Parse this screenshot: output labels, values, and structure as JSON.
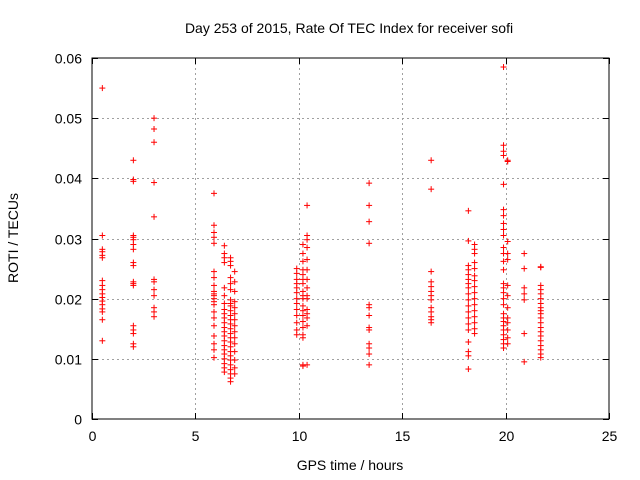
{
  "chart_data": {
    "type": "scatter",
    "title": "Day 253 of 2015, Rate Of TEC Index for receiver sofi",
    "xlabel": "GPS time / hours",
    "ylabel": "ROTI / TECUs",
    "xlim": [
      0,
      25
    ],
    "ylim": [
      0,
      0.06
    ],
    "xticks": [
      "0",
      "5",
      "10",
      "15",
      "20",
      "25"
    ],
    "yticks": [
      "0",
      "0.01",
      "0.02",
      "0.03",
      "0.04",
      "0.05",
      "0.06"
    ],
    "grid": true,
    "marker": "+",
    "color": "#ff0000",
    "series": [
      {
        "name": "sofi",
        "points": [
          [
            0.5,
            0.055
          ],
          [
            0.5,
            0.0305
          ],
          [
            0.5,
            0.0282
          ],
          [
            0.5,
            0.0278
          ],
          [
            0.5,
            0.0272
          ],
          [
            0.5,
            0.0268
          ],
          [
            0.5,
            0.023
          ],
          [
            0.5,
            0.0222
          ],
          [
            0.5,
            0.0215
          ],
          [
            0.5,
            0.0208
          ],
          [
            0.5,
            0.0202
          ],
          [
            0.5,
            0.0196
          ],
          [
            0.5,
            0.019
          ],
          [
            0.5,
            0.0183
          ],
          [
            0.5,
            0.0178
          ],
          [
            0.5,
            0.0165
          ],
          [
            0.5,
            0.013
          ],
          [
            2.0,
            0.043
          ],
          [
            2.0,
            0.0398
          ],
          [
            2.0,
            0.0395
          ],
          [
            2.0,
            0.0305
          ],
          [
            2.0,
            0.0302
          ],
          [
            2.0,
            0.0298
          ],
          [
            2.0,
            0.029
          ],
          [
            2.0,
            0.0282
          ],
          [
            2.0,
            0.026
          ],
          [
            2.0,
            0.0255
          ],
          [
            2.0,
            0.0228
          ],
          [
            2.0,
            0.0225
          ],
          [
            2.0,
            0.0222
          ],
          [
            2.0,
            0.0155
          ],
          [
            2.0,
            0.0148
          ],
          [
            2.0,
            0.0142
          ],
          [
            2.0,
            0.0125
          ],
          [
            2.0,
            0.012
          ],
          [
            3.0,
            0.05
          ],
          [
            3.0,
            0.0482
          ],
          [
            3.0,
            0.046
          ],
          [
            3.0,
            0.0393
          ],
          [
            3.0,
            0.0336
          ],
          [
            3.0,
            0.0232
          ],
          [
            3.0,
            0.0228
          ],
          [
            3.0,
            0.0215
          ],
          [
            3.0,
            0.0205
          ],
          [
            3.0,
            0.0185
          ],
          [
            3.0,
            0.0178
          ],
          [
            3.0,
            0.017
          ],
          [
            5.9,
            0.0375
          ],
          [
            5.9,
            0.0322
          ],
          [
            5.9,
            0.031
          ],
          [
            5.9,
            0.0302
          ],
          [
            5.9,
            0.0292
          ],
          [
            5.9,
            0.0245
          ],
          [
            5.9,
            0.0235
          ],
          [
            5.9,
            0.0222
          ],
          [
            5.9,
            0.0212
          ],
          [
            5.9,
            0.0208
          ],
          [
            5.9,
            0.0205
          ],
          [
            5.9,
            0.02
          ],
          [
            5.9,
            0.0195
          ],
          [
            5.9,
            0.019
          ],
          [
            5.9,
            0.0178
          ],
          [
            5.9,
            0.0168
          ],
          [
            5.9,
            0.0155
          ],
          [
            5.9,
            0.0138
          ],
          [
            5.9,
            0.0125
          ],
          [
            5.9,
            0.0115
          ],
          [
            5.9,
            0.0102
          ],
          [
            6.4,
            0.0288
          ],
          [
            6.4,
            0.0275
          ],
          [
            6.4,
            0.0268
          ],
          [
            6.4,
            0.026
          ],
          [
            6.4,
            0.0218
          ],
          [
            6.4,
            0.0205
          ],
          [
            6.4,
            0.0192
          ],
          [
            6.4,
            0.0182
          ],
          [
            6.4,
            0.0175
          ],
          [
            6.4,
            0.0168
          ],
          [
            6.4,
            0.016
          ],
          [
            6.4,
            0.0152
          ],
          [
            6.4,
            0.0145
          ],
          [
            6.4,
            0.0138
          ],
          [
            6.4,
            0.013
          ],
          [
            6.4,
            0.0122
          ],
          [
            6.4,
            0.0115
          ],
          [
            6.4,
            0.0108
          ],
          [
            6.4,
            0.01
          ],
          [
            6.4,
            0.0092
          ],
          [
            6.4,
            0.0085
          ],
          [
            6.4,
            0.0078
          ],
          [
            6.7,
            0.0268
          ],
          [
            6.7,
            0.0262
          ],
          [
            6.7,
            0.0255
          ],
          [
            6.7,
            0.0235
          ],
          [
            6.7,
            0.0225
          ],
          [
            6.7,
            0.0215
          ],
          [
            6.7,
            0.0198
          ],
          [
            6.7,
            0.0192
          ],
          [
            6.7,
            0.0188
          ],
          [
            6.7,
            0.018
          ],
          [
            6.7,
            0.0172
          ],
          [
            6.7,
            0.0165
          ],
          [
            6.7,
            0.0158
          ],
          [
            6.7,
            0.015
          ],
          [
            6.7,
            0.0142
          ],
          [
            6.7,
            0.0135
          ],
          [
            6.7,
            0.0128
          ],
          [
            6.7,
            0.012
          ],
          [
            6.7,
            0.0112
          ],
          [
            6.7,
            0.0105
          ],
          [
            6.7,
            0.0098
          ],
          [
            6.7,
            0.009
          ],
          [
            6.7,
            0.0082
          ],
          [
            6.7,
            0.0075
          ],
          [
            6.7,
            0.0068
          ],
          [
            6.7,
            0.0062
          ],
          [
            6.9,
            0.0245
          ],
          [
            6.9,
            0.0228
          ],
          [
            6.9,
            0.0212
          ],
          [
            6.9,
            0.0195
          ],
          [
            6.9,
            0.0185
          ],
          [
            6.9,
            0.0175
          ],
          [
            6.9,
            0.0165
          ],
          [
            6.9,
            0.0155
          ],
          [
            6.9,
            0.0145
          ],
          [
            6.9,
            0.0135
          ],
          [
            6.9,
            0.0125
          ],
          [
            6.9,
            0.0112
          ],
          [
            6.9,
            0.0098
          ],
          [
            6.9,
            0.0085
          ],
          [
            6.9,
            0.0075
          ],
          [
            9.9,
            0.025
          ],
          [
            9.9,
            0.0242
          ],
          [
            9.9,
            0.0232
          ],
          [
            9.9,
            0.0225
          ],
          [
            9.9,
            0.0218
          ],
          [
            9.9,
            0.021
          ],
          [
            9.9,
            0.02
          ],
          [
            9.9,
            0.0192
          ],
          [
            9.9,
            0.0182
          ],
          [
            9.9,
            0.0172
          ],
          [
            9.9,
            0.016
          ],
          [
            9.9,
            0.0148
          ],
          [
            9.9,
            0.014
          ],
          [
            10.2,
            0.029
          ],
          [
            10.2,
            0.0275
          ],
          [
            10.2,
            0.0262
          ],
          [
            10.2,
            0.0248
          ],
          [
            10.2,
            0.024
          ],
          [
            10.2,
            0.0232
          ],
          [
            10.2,
            0.0225
          ],
          [
            10.2,
            0.0212
          ],
          [
            10.2,
            0.0205
          ],
          [
            10.2,
            0.02
          ],
          [
            10.2,
            0.0188
          ],
          [
            10.2,
            0.018
          ],
          [
            10.2,
            0.0172
          ],
          [
            10.2,
            0.0162
          ],
          [
            10.2,
            0.0152
          ],
          [
            10.2,
            0.014
          ],
          [
            10.2,
            0.0135
          ],
          [
            10.2,
            0.009
          ],
          [
            10.2,
            0.0088
          ],
          [
            10.4,
            0.0355
          ],
          [
            10.4,
            0.0305
          ],
          [
            10.4,
            0.0298
          ],
          [
            10.4,
            0.0285
          ],
          [
            10.4,
            0.0265
          ],
          [
            10.4,
            0.0248
          ],
          [
            10.4,
            0.0232
          ],
          [
            10.4,
            0.0218
          ],
          [
            10.4,
            0.0205
          ],
          [
            10.4,
            0.02
          ],
          [
            10.4,
            0.0182
          ],
          [
            10.4,
            0.0175
          ],
          [
            10.4,
            0.0168
          ],
          [
            10.4,
            0.0155
          ],
          [
            10.4,
            0.009
          ],
          [
            13.4,
            0.0392
          ],
          [
            13.4,
            0.0355
          ],
          [
            13.4,
            0.0328
          ],
          [
            13.4,
            0.0292
          ],
          [
            13.4,
            0.019
          ],
          [
            13.4,
            0.0185
          ],
          [
            13.4,
            0.0172
          ],
          [
            13.4,
            0.0152
          ],
          [
            13.4,
            0.0148
          ],
          [
            13.4,
            0.0125
          ],
          [
            13.4,
            0.0118
          ],
          [
            13.4,
            0.0108
          ],
          [
            13.4,
            0.009
          ],
          [
            16.4,
            0.043
          ],
          [
            16.4,
            0.0382
          ],
          [
            16.4,
            0.0245
          ],
          [
            16.4,
            0.0228
          ],
          [
            16.4,
            0.022
          ],
          [
            16.4,
            0.0212
          ],
          [
            16.4,
            0.0205
          ],
          [
            16.4,
            0.0198
          ],
          [
            16.4,
            0.0185
          ],
          [
            16.4,
            0.0178
          ],
          [
            16.4,
            0.017
          ],
          [
            16.4,
            0.0165
          ],
          [
            16.4,
            0.016
          ],
          [
            18.2,
            0.0346
          ],
          [
            18.2,
            0.0296
          ],
          [
            18.2,
            0.0255
          ],
          [
            18.2,
            0.0248
          ],
          [
            18.2,
            0.024
          ],
          [
            18.2,
            0.0232
          ],
          [
            18.2,
            0.0225
          ],
          [
            18.2,
            0.0218
          ],
          [
            18.2,
            0.0208
          ],
          [
            18.2,
            0.0198
          ],
          [
            18.2,
            0.0188
          ],
          [
            18.2,
            0.0178
          ],
          [
            18.2,
            0.0168
          ],
          [
            18.2,
            0.0158
          ],
          [
            18.2,
            0.0148
          ],
          [
            18.2,
            0.0128
          ],
          [
            18.2,
            0.0112
          ],
          [
            18.2,
            0.0105
          ],
          [
            18.2,
            0.0083
          ],
          [
            18.5,
            0.029
          ],
          [
            18.5,
            0.0282
          ],
          [
            18.5,
            0.0275
          ],
          [
            18.5,
            0.026
          ],
          [
            18.5,
            0.025
          ],
          [
            18.5,
            0.0238
          ],
          [
            18.5,
            0.023
          ],
          [
            18.5,
            0.022
          ],
          [
            18.5,
            0.021
          ],
          [
            18.5,
            0.02
          ],
          [
            18.5,
            0.019
          ],
          [
            18.5,
            0.018
          ],
          [
            18.5,
            0.017
          ],
          [
            18.5,
            0.016
          ],
          [
            18.5,
            0.015
          ],
          [
            18.5,
            0.0142
          ],
          [
            19.9,
            0.0585
          ],
          [
            19.9,
            0.0455
          ],
          [
            19.9,
            0.0445
          ],
          [
            19.9,
            0.0438
          ],
          [
            19.9,
            0.039
          ],
          [
            19.9,
            0.0348
          ],
          [
            19.9,
            0.0338
          ],
          [
            19.9,
            0.0325
          ],
          [
            19.9,
            0.0315
          ],
          [
            19.9,
            0.0305
          ],
          [
            19.9,
            0.0285
          ],
          [
            19.9,
            0.0275
          ],
          [
            19.9,
            0.0262
          ],
          [
            19.9,
            0.0248
          ],
          [
            19.9,
            0.0225
          ],
          [
            19.9,
            0.0218
          ],
          [
            19.9,
            0.021
          ],
          [
            19.9,
            0.02
          ],
          [
            19.9,
            0.019
          ],
          [
            19.9,
            0.0175
          ],
          [
            19.9,
            0.0168
          ],
          [
            19.9,
            0.0162
          ],
          [
            19.9,
            0.0155
          ],
          [
            19.9,
            0.0148
          ],
          [
            19.9,
            0.014
          ],
          [
            19.9,
            0.0132
          ],
          [
            19.9,
            0.0125
          ],
          [
            19.9,
            0.0118
          ],
          [
            20.1,
            0.043
          ],
          [
            20.1,
            0.0428
          ],
          [
            20.1,
            0.0295
          ],
          [
            20.1,
            0.0275
          ],
          [
            20.1,
            0.0265
          ],
          [
            20.1,
            0.0222
          ],
          [
            20.1,
            0.0205
          ],
          [
            20.1,
            0.0185
          ],
          [
            20.1,
            0.0168
          ],
          [
            20.1,
            0.016
          ],
          [
            20.1,
            0.0148
          ],
          [
            20.1,
            0.0135
          ],
          [
            20.1,
            0.0125
          ],
          [
            20.9,
            0.0275
          ],
          [
            20.9,
            0.025
          ],
          [
            20.9,
            0.0218
          ],
          [
            20.9,
            0.0208
          ],
          [
            20.9,
            0.0198
          ],
          [
            20.9,
            0.0142
          ],
          [
            20.9,
            0.0095
          ],
          [
            21.7,
            0.0253
          ],
          [
            21.7,
            0.0252
          ],
          [
            21.7,
            0.0222
          ],
          [
            21.7,
            0.0215
          ],
          [
            21.7,
            0.0208
          ],
          [
            21.7,
            0.02
          ],
          [
            21.7,
            0.0192
          ],
          [
            21.7,
            0.0185
          ],
          [
            21.7,
            0.018
          ],
          [
            21.7,
            0.0175
          ],
          [
            21.7,
            0.0168
          ],
          [
            21.7,
            0.016
          ],
          [
            21.7,
            0.0152
          ],
          [
            21.7,
            0.0145
          ],
          [
            21.7,
            0.0138
          ],
          [
            21.7,
            0.013
          ],
          [
            21.7,
            0.0122
          ],
          [
            21.7,
            0.0115
          ],
          [
            21.7,
            0.0108
          ],
          [
            21.7,
            0.0102
          ]
        ]
      }
    ]
  }
}
